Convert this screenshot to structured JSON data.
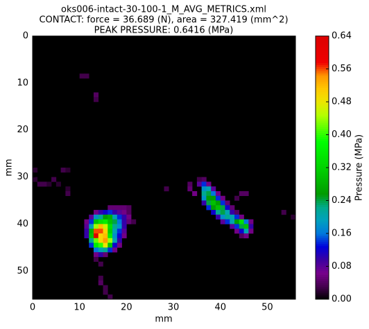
{
  "chart_data": {
    "type": "heatmap",
    "title": [
      "oks006-intact-30-100-1_M_AVG_METRICS.xml",
      "CONTACT: force = 36.689 (N), area = 327.419 (mm^2)",
      "PEAK PRESSURE: 0.6416 (MPa)"
    ],
    "x_label": "mm",
    "y_label": "mm",
    "colorbar_label": "Pressure (MPa)",
    "colormap": "nipy_spectral",
    "xlim": [
      0,
      56
    ],
    "ylim": [
      56,
      0
    ],
    "xticks": [
      0,
      10,
      20,
      30,
      40,
      50
    ],
    "yticks": [
      0,
      10,
      20,
      30,
      40,
      50
    ],
    "clim": [
      0,
      0.64
    ],
    "cticks": [
      {
        "value": 0,
        "label": "0.00"
      },
      {
        "value": 0.08,
        "label": "0.08"
      },
      {
        "value": 0.16,
        "label": "0.16"
      },
      {
        "value": 0.24,
        "label": "0.24"
      },
      {
        "value": 0.32,
        "label": "0.32"
      },
      {
        "value": 0.4,
        "label": "0.40"
      },
      {
        "value": 0.48,
        "label": "0.48"
      },
      {
        "value": 0.56,
        "label": "0.56"
      },
      {
        "value": 0.64,
        "label": "0.64"
      }
    ],
    "cells": [
      [
        10,
        8,
        0.03
      ],
      [
        11,
        8,
        0.03
      ],
      [
        13,
        12,
        0.04
      ],
      [
        13,
        13,
        0.03
      ],
      [
        0,
        28,
        0.02
      ],
      [
        6,
        28,
        0.03
      ],
      [
        7,
        28,
        0.02
      ],
      [
        0,
        30,
        0.02
      ],
      [
        1,
        31,
        0.03
      ],
      [
        2,
        31,
        0.03
      ],
      [
        3,
        31,
        0.02
      ],
      [
        4,
        30,
        0.03
      ],
      [
        5,
        31,
        0.02
      ],
      [
        7,
        32,
        0.02
      ],
      [
        7,
        33,
        0.03
      ],
      [
        28,
        32,
        0.03
      ],
      [
        53,
        37,
        0.03
      ],
      [
        55,
        38,
        0.02
      ],
      [
        16,
        36,
        0.05
      ],
      [
        17,
        36,
        0.05
      ],
      [
        18,
        36,
        0.05
      ],
      [
        19,
        36,
        0.05
      ],
      [
        20,
        36,
        0.04
      ],
      [
        13,
        37,
        0.06
      ],
      [
        14,
        37,
        0.1
      ],
      [
        15,
        37,
        0.12
      ],
      [
        16,
        37,
        0.14
      ],
      [
        17,
        37,
        0.1
      ],
      [
        18,
        37,
        0.08
      ],
      [
        19,
        37,
        0.06
      ],
      [
        20,
        37,
        0.04
      ],
      [
        12,
        38,
        0.08
      ],
      [
        13,
        38,
        0.18
      ],
      [
        14,
        38,
        0.22
      ],
      [
        15,
        38,
        0.26
      ],
      [
        16,
        38,
        0.28
      ],
      [
        17,
        38,
        0.2
      ],
      [
        18,
        38,
        0.14
      ],
      [
        19,
        38,
        0.1
      ],
      [
        20,
        38,
        0.06
      ],
      [
        11,
        39,
        0.06
      ],
      [
        12,
        39,
        0.14
      ],
      [
        13,
        39,
        0.3
      ],
      [
        14,
        39,
        0.34
      ],
      [
        15,
        39,
        0.36
      ],
      [
        16,
        39,
        0.3
      ],
      [
        17,
        39,
        0.24
      ],
      [
        18,
        39,
        0.16
      ],
      [
        19,
        39,
        0.1
      ],
      [
        20,
        39,
        0.05
      ],
      [
        21,
        39,
        0.03
      ],
      [
        11,
        40,
        0.08
      ],
      [
        12,
        40,
        0.2
      ],
      [
        13,
        40,
        0.44
      ],
      [
        14,
        40,
        0.52
      ],
      [
        15,
        40,
        0.46
      ],
      [
        16,
        40,
        0.34
      ],
      [
        17,
        40,
        0.22
      ],
      [
        18,
        40,
        0.18
      ],
      [
        19,
        40,
        0.1
      ],
      [
        11,
        41,
        0.1
      ],
      [
        12,
        41,
        0.28
      ],
      [
        13,
        41,
        0.56
      ],
      [
        14,
        41,
        0.56
      ],
      [
        15,
        41,
        0.5
      ],
      [
        16,
        41,
        0.32
      ],
      [
        17,
        41,
        0.2
      ],
      [
        18,
        41,
        0.14
      ],
      [
        19,
        41,
        0.08
      ],
      [
        11,
        42,
        0.1
      ],
      [
        12,
        42,
        0.3
      ],
      [
        13,
        42,
        0.64
      ],
      [
        14,
        42,
        0.5
      ],
      [
        15,
        42,
        0.52
      ],
      [
        16,
        42,
        0.36
      ],
      [
        17,
        42,
        0.18
      ],
      [
        18,
        42,
        0.12
      ],
      [
        19,
        42,
        0.06
      ],
      [
        12,
        43,
        0.22
      ],
      [
        13,
        43,
        0.42
      ],
      [
        14,
        43,
        0.5
      ],
      [
        15,
        43,
        0.54
      ],
      [
        16,
        43,
        0.44
      ],
      [
        17,
        43,
        0.2
      ],
      [
        18,
        43,
        0.1
      ],
      [
        12,
        44,
        0.14
      ],
      [
        13,
        44,
        0.36
      ],
      [
        14,
        44,
        0.4
      ],
      [
        15,
        44,
        0.48
      ],
      [
        16,
        44,
        0.3
      ],
      [
        17,
        44,
        0.12
      ],
      [
        18,
        44,
        0.06
      ],
      [
        13,
        45,
        0.16
      ],
      [
        14,
        45,
        0.2
      ],
      [
        15,
        45,
        0.22
      ],
      [
        16,
        45,
        0.14
      ],
      [
        17,
        45,
        0.06
      ],
      [
        13,
        46,
        0.06
      ],
      [
        14,
        46,
        0.1
      ],
      [
        15,
        46,
        0.05
      ],
      [
        13,
        47,
        0.03
      ],
      [
        14,
        48,
        0.03
      ],
      [
        14,
        51,
        0.03
      ],
      [
        14,
        52,
        0.04
      ],
      [
        15,
        53,
        0.03
      ],
      [
        15,
        54,
        0.03
      ],
      [
        16,
        55,
        0.03
      ],
      [
        35,
        30,
        0.03
      ],
      [
        36,
        30,
        0.04
      ],
      [
        33,
        31,
        0.04
      ],
      [
        35,
        31,
        0.08
      ],
      [
        36,
        31,
        0.14
      ],
      [
        37,
        31,
        0.06
      ],
      [
        33,
        32,
        0.05
      ],
      [
        36,
        32,
        0.18
      ],
      [
        37,
        32,
        0.2
      ],
      [
        38,
        32,
        0.08
      ],
      [
        34,
        33,
        0.06
      ],
      [
        36,
        33,
        0.22
      ],
      [
        37,
        33,
        0.24
      ],
      [
        38,
        33,
        0.16
      ],
      [
        39,
        33,
        0.06
      ],
      [
        44,
        33,
        0.04
      ],
      [
        45,
        33,
        0.04
      ],
      [
        36,
        34,
        0.18
      ],
      [
        37,
        34,
        0.26
      ],
      [
        38,
        34,
        0.26
      ],
      [
        39,
        34,
        0.14
      ],
      [
        40,
        34,
        0.06
      ],
      [
        43,
        34,
        0.03
      ],
      [
        36,
        35,
        0.1
      ],
      [
        37,
        35,
        0.24
      ],
      [
        38,
        35,
        0.3
      ],
      [
        39,
        35,
        0.26
      ],
      [
        40,
        35,
        0.14
      ],
      [
        41,
        35,
        0.05
      ],
      [
        37,
        36,
        0.14
      ],
      [
        38,
        36,
        0.26
      ],
      [
        39,
        36,
        0.3
      ],
      [
        40,
        36,
        0.24
      ],
      [
        41,
        36,
        0.12
      ],
      [
        42,
        36,
        0.05
      ],
      [
        38,
        37,
        0.12
      ],
      [
        39,
        37,
        0.22
      ],
      [
        40,
        37,
        0.24
      ],
      [
        41,
        37,
        0.2
      ],
      [
        42,
        37,
        0.1
      ],
      [
        43,
        37,
        0.04
      ],
      [
        39,
        38,
        0.1
      ],
      [
        40,
        38,
        0.18
      ],
      [
        41,
        38,
        0.22
      ],
      [
        42,
        38,
        0.2
      ],
      [
        43,
        38,
        0.14
      ],
      [
        44,
        38,
        0.06
      ],
      [
        40,
        39,
        0.08
      ],
      [
        41,
        39,
        0.14
      ],
      [
        42,
        39,
        0.2
      ],
      [
        43,
        39,
        0.26
      ],
      [
        44,
        39,
        0.34
      ],
      [
        45,
        39,
        0.16
      ],
      [
        46,
        39,
        0.06
      ],
      [
        42,
        40,
        0.08
      ],
      [
        43,
        40,
        0.14
      ],
      [
        44,
        40,
        0.24
      ],
      [
        45,
        40,
        0.3
      ],
      [
        46,
        40,
        0.1
      ],
      [
        43,
        41,
        0.06
      ],
      [
        44,
        41,
        0.12
      ],
      [
        45,
        41,
        0.2
      ],
      [
        46,
        41,
        0.06
      ],
      [
        44,
        42,
        0.04
      ],
      [
        45,
        42,
        0.06
      ]
    ]
  }
}
